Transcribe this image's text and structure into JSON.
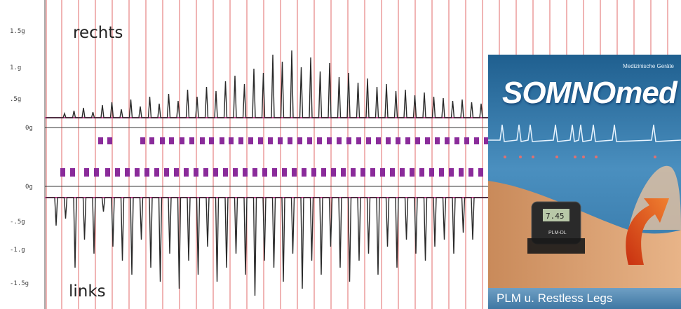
{
  "trace_labels": {
    "top": "rechts",
    "bottom": "links"
  },
  "axis_ticks": {
    "top": [
      "1.5g",
      "1.g",
      ".5g",
      "0g"
    ],
    "bottom": [
      "0g",
      "-.5g",
      "-1.g",
      "-1.5g"
    ]
  },
  "product_card": {
    "subtitle": "Medizinische Geräte",
    "brand": "SOMNOmed",
    "caption": "PLM u. Restless Legs",
    "device_screen": "7.45",
    "device_label": "PLM-DL"
  },
  "colors": {
    "grid_line": "#e06a6a",
    "baseline": "#c03a8a",
    "marker": "#8a2b9a",
    "signal": "#2a2a2a",
    "card_bg": "#2f6f9f"
  }
}
